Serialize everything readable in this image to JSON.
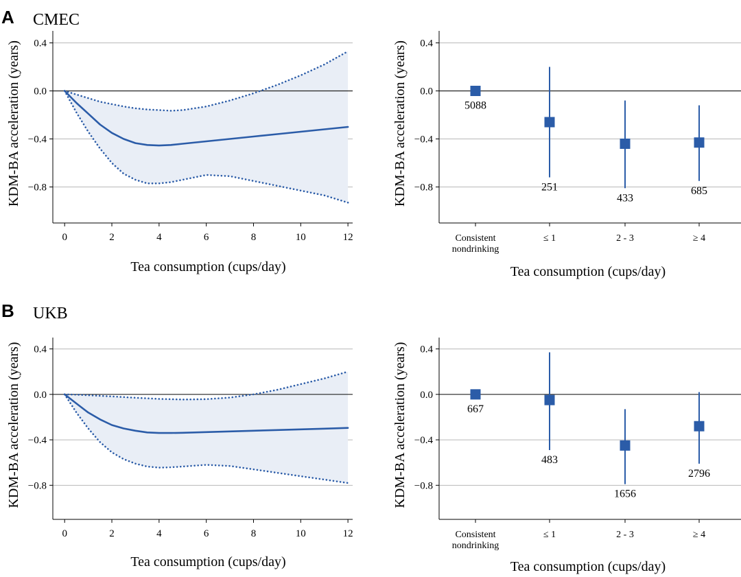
{
  "panels": [
    {
      "letter": "A",
      "name": "CMEC"
    },
    {
      "letter": "B",
      "name": "UKB"
    }
  ],
  "colors": {
    "line": "#2b5ca8",
    "band": "#e9eef6",
    "grid": "#b8b8b8",
    "zero": "#222222",
    "marker": "#2b5ca8"
  },
  "chart_data": [
    {
      "type": "line",
      "panel": "A",
      "title": "CMEC",
      "xlabel": "Tea consumption (cups/day)",
      "ylabel": "KDM-BA acceleration (years)",
      "xlim": [
        -0.5,
        12.2
      ],
      "ylim": [
        -1.1,
        0.5
      ],
      "xticks": [
        0,
        2,
        4,
        6,
        8,
        10,
        12
      ],
      "yticks": [
        0.4,
        0.0,
        -0.4,
        -0.8
      ],
      "ytick_labels": [
        "0.4",
        "0.0",
        "−0.4",
        "−0.8"
      ],
      "x": [
        0,
        0.5,
        1,
        1.5,
        2,
        2.5,
        3,
        3.5,
        4,
        4.5,
        5,
        6,
        7,
        8,
        9,
        10,
        11,
        12
      ],
      "series": [
        {
          "name": "estimate",
          "style": "solid",
          "values": [
            0,
            -0.1,
            -0.19,
            -0.28,
            -0.35,
            -0.4,
            -0.435,
            -0.45,
            -0.455,
            -0.45,
            -0.44,
            -0.42,
            -0.4,
            -0.38,
            -0.36,
            -0.34,
            -0.32,
            -0.3
          ]
        },
        {
          "name": "upper 95% CI",
          "style": "dotted",
          "values": [
            0,
            -0.03,
            -0.06,
            -0.09,
            -0.11,
            -0.13,
            -0.145,
            -0.155,
            -0.16,
            -0.165,
            -0.16,
            -0.13,
            -0.08,
            -0.02,
            0.05,
            0.13,
            0.22,
            0.33
          ]
        },
        {
          "name": "lower 95% CI",
          "style": "dotted",
          "values": [
            0,
            -0.18,
            -0.34,
            -0.48,
            -0.6,
            -0.69,
            -0.74,
            -0.77,
            -0.77,
            -0.76,
            -0.74,
            -0.7,
            -0.71,
            -0.75,
            -0.79,
            -0.83,
            -0.87,
            -0.93
          ]
        }
      ]
    },
    {
      "type": "scatter",
      "panel": "A",
      "xlabel": "Tea consumption (cups/day)",
      "ylabel": "KDM-BA acceleration (years)",
      "ylim": [
        -1.1,
        0.5
      ],
      "yticks": [
        0.4,
        0.0,
        -0.4,
        -0.8
      ],
      "ytick_labels": [
        "0.4",
        "0.0",
        "−0.4",
        "−0.8"
      ],
      "categories": [
        "Consistent nondrinking",
        "≤ 1",
        "2 - 3",
        "≥ 4"
      ],
      "category_lines": [
        [
          "Consistent",
          "nondrinking"
        ],
        [
          "≤ 1"
        ],
        [
          "2 - 3"
        ],
        [
          "≥ 4"
        ]
      ],
      "values": [
        0.0,
        -0.26,
        -0.44,
        -0.43
      ],
      "ci_low": [
        null,
        -0.72,
        -0.81,
        -0.75
      ],
      "ci_high": [
        null,
        0.2,
        -0.08,
        -0.12
      ],
      "n": [
        "5088",
        "251",
        "433",
        "685"
      ]
    },
    {
      "type": "line",
      "panel": "B",
      "title": "UKB",
      "xlabel": "Tea consumption (cups/day)",
      "ylabel": "KDM-BA acceleration (years)",
      "xlim": [
        -0.5,
        12.2
      ],
      "ylim": [
        -1.1,
        0.5
      ],
      "xticks": [
        0,
        2,
        4,
        6,
        8,
        10,
        12
      ],
      "yticks": [
        0.4,
        0.0,
        -0.4,
        -0.8
      ],
      "ytick_labels": [
        "0.4",
        "0.0",
        "−0.4",
        "−0.8"
      ],
      "x": [
        0,
        0.5,
        1,
        1.5,
        2,
        2.5,
        3,
        3.5,
        4,
        4.5,
        5,
        6,
        7,
        8,
        9,
        10,
        11,
        12
      ],
      "series": [
        {
          "name": "estimate",
          "style": "solid",
          "values": [
            0,
            -0.08,
            -0.16,
            -0.22,
            -0.27,
            -0.3,
            -0.32,
            -0.335,
            -0.34,
            -0.34,
            -0.338,
            -0.332,
            -0.326,
            -0.32,
            -0.314,
            -0.308,
            -0.302,
            -0.295
          ]
        },
        {
          "name": "upper 95% CI",
          "style": "dotted",
          "values": [
            0,
            -0.003,
            -0.008,
            -0.013,
            -0.018,
            -0.024,
            -0.03,
            -0.035,
            -0.04,
            -0.043,
            -0.045,
            -0.042,
            -0.028,
            0.0,
            0.04,
            0.09,
            0.14,
            0.2
          ]
        },
        {
          "name": "lower 95% CI",
          "style": "dotted",
          "values": [
            0,
            -0.16,
            -0.3,
            -0.42,
            -0.51,
            -0.57,
            -0.61,
            -0.635,
            -0.645,
            -0.642,
            -0.635,
            -0.62,
            -0.63,
            -0.66,
            -0.69,
            -0.72,
            -0.75,
            -0.78
          ]
        }
      ]
    },
    {
      "type": "scatter",
      "panel": "B",
      "xlabel": "Tea consumption (cups/day)",
      "ylabel": "KDM-BA acceleration (years)",
      "ylim": [
        -1.1,
        0.5
      ],
      "yticks": [
        0.4,
        0.0,
        -0.4,
        -0.8
      ],
      "ytick_labels": [
        "0.4",
        "0.0",
        "−0.4",
        "−0.8"
      ],
      "categories": [
        "Consistent nondrinking",
        "≤ 1",
        "2 - 3",
        "≥ 4"
      ],
      "category_lines": [
        [
          "Consistent",
          "nondrinking"
        ],
        [
          "≤ 1"
        ],
        [
          "2 - 3"
        ],
        [
          "≥ 4"
        ]
      ],
      "values": [
        0.0,
        -0.05,
        -0.45,
        -0.28
      ],
      "ci_low": [
        null,
        -0.49,
        -0.79,
        -0.61
      ],
      "ci_high": [
        null,
        0.37,
        -0.13,
        0.02
      ],
      "n": [
        "667",
        "483",
        "1656",
        "2796"
      ]
    }
  ]
}
